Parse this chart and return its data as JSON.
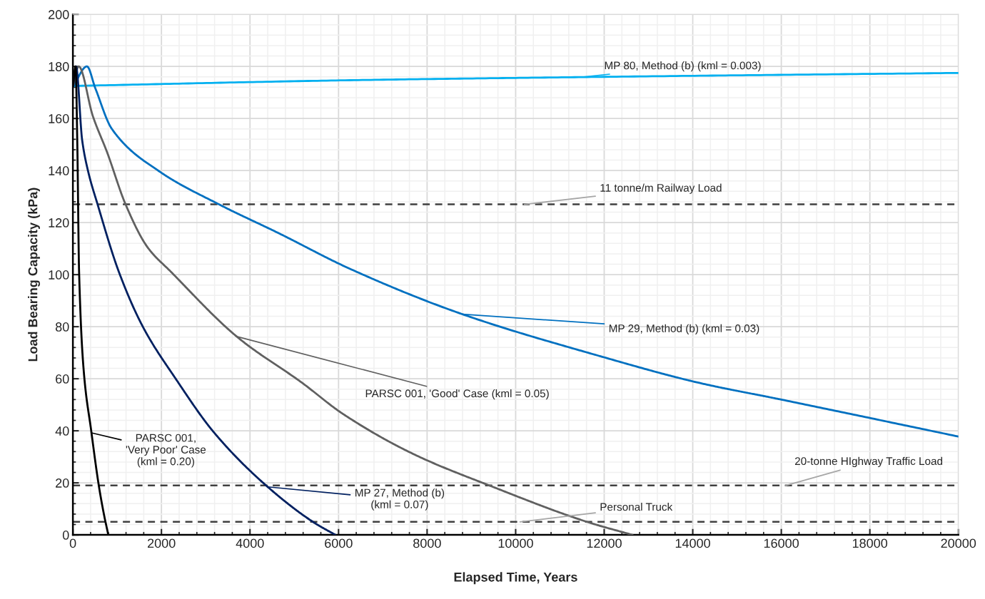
{
  "chart_data": {
    "type": "line",
    "xlabel": "Elapsed Time, Years",
    "ylabel": "Load Bearing Capacity (kPa)",
    "xlim": [
      0,
      20000
    ],
    "xticks": [
      0,
      2000,
      4000,
      6000,
      8000,
      10000,
      12000,
      14000,
      16000,
      18000,
      20000
    ],
    "ylim": [
      0,
      200
    ],
    "yticks": [
      0,
      20,
      40,
      60,
      80,
      100,
      120,
      140,
      160,
      180,
      200
    ],
    "grid": true,
    "marker": "none",
    "line_style": "solid",
    "series": [
      {
        "name": "MP 80, Method (b) (kml = 0.003)",
        "color": "#00b0f0",
        "x": [
          0,
          6250,
          12000,
          20000
        ],
        "values": [
          172.5,
          174.7,
          176,
          177.5
        ]
      },
      {
        "name": "MP 29, Method (b) (kml = 0.03)",
        "color": "#0070c0",
        "x": [
          0,
          317,
          505,
          880,
          1950,
          3300,
          4640,
          6250,
          8780,
          11840,
          14150,
          16000,
          20000
        ],
        "values": [
          172,
          180,
          171.7,
          156,
          139.7,
          127,
          116,
          102.3,
          84.9,
          69,
          58.4,
          52,
          37.8
        ]
      },
      {
        "name": "PARSC 001, 'Good' Case (kml = 0.05)",
        "color": "#606060",
        "x": [
          0,
          130,
          451,
          773,
          1190,
          1687,
          2220,
          3730,
          5180,
          6090,
          7700,
          9420,
          11670,
          12640
        ],
        "values": [
          172,
          180,
          160.9,
          147,
          127,
          110.5,
          101,
          75.8,
          58.4,
          46.6,
          31,
          18.9,
          4.7,
          0
        ]
      },
      {
        "name": "MP 27, Method (b)\n(kml = 0.07)",
        "color": "#002060",
        "x": [
          0,
          70,
          210,
          344,
          558,
          1040,
          1580,
          2330,
          3190,
          4370,
          5450,
          5930
        ],
        "values": [
          172,
          180,
          151.6,
          139.7,
          127,
          101,
          80,
          59.8,
          39.3,
          18.9,
          4.7,
          0
        ]
      },
      {
        "name": "PARSC 001,\n'Very Poor' Case\n(kml = 0.20)",
        "color": "#000000",
        "x": [
          0,
          60,
          100,
          140,
          250,
          414,
          585,
          700,
          800
        ],
        "values": [
          172,
          180,
          150,
          101,
          62,
          40,
          19,
          8,
          0
        ]
      }
    ],
    "ref_lines": [
      {
        "axis": "y",
        "value": 127,
        "label": "11 tonne/m Railway Load",
        "color": "#404040",
        "line_style": "dashed"
      },
      {
        "axis": "y",
        "value": 19,
        "label": "20-tonne HIghway Traffic Load",
        "color": "#404040",
        "line_style": "dashed"
      },
      {
        "axis": "y",
        "value": 5,
        "label": "Personal Truck",
        "color": "#404040",
        "line_style": "dashed"
      }
    ]
  }
}
